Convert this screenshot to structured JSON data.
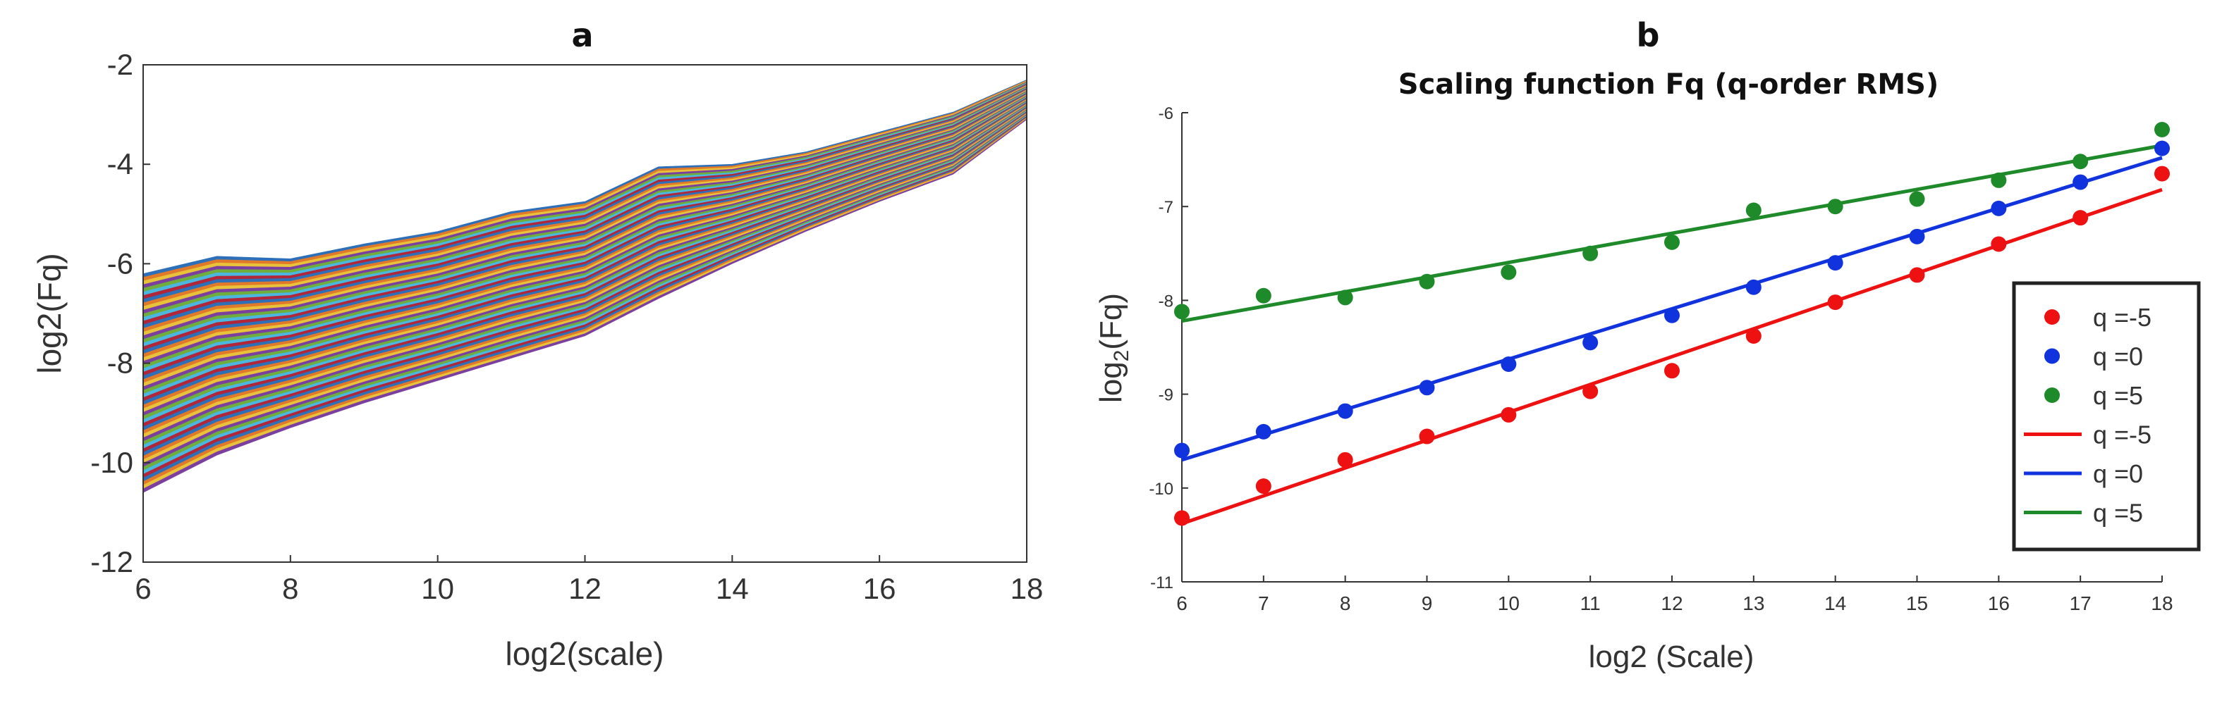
{
  "colors": {
    "red": "#ee1111",
    "blue": "#1133dd",
    "green": "#1f8a2a",
    "band_palette": [
      "#2d6fb8",
      "#e07a2a",
      "#e8c23a",
      "#7b3fa0",
      "#6fae3c",
      "#4bb6e0",
      "#b2263a"
    ]
  },
  "chart_data": [
    {
      "panel_label": "a",
      "type": "area",
      "title": "",
      "xlabel": "log2(scale)",
      "ylabel": "log2(Fq)",
      "xlim": [
        6,
        18
      ],
      "ylim": [
        -12,
        -2
      ],
      "xticks": [
        "6",
        "8",
        "10",
        "12",
        "14",
        "16",
        "18"
      ],
      "yticks": [
        "-2",
        "-4",
        "-6",
        "-8",
        "-10",
        "-12"
      ],
      "grid": false,
      "x": [
        6,
        7,
        8,
        9,
        10,
        11,
        12,
        13,
        14,
        15,
        16,
        17,
        18
      ],
      "upper_envelope": [
        -6.2,
        -5.85,
        -5.9,
        -5.6,
        -5.35,
        -4.95,
        -4.75,
        -4.05,
        -4.0,
        -3.75,
        -3.35,
        -2.95,
        -2.3
      ],
      "lower_envelope": [
        -10.6,
        -9.85,
        -9.3,
        -8.8,
        -8.35,
        -7.9,
        -7.45,
        -6.7,
        -6.0,
        -5.35,
        -4.75,
        -4.2,
        -3.1
      ],
      "band_count": 60
    },
    {
      "panel_label": "b",
      "type": "scatter",
      "title": "Scaling function Fq (q-order RMS)",
      "xlabel": "log2 (Scale)",
      "ylabel_main": "log",
      "ylabel_sub": "2",
      "ylabel_tail": "(Fq)",
      "xlim": [
        6,
        18
      ],
      "ylim": [
        -11,
        -6
      ],
      "xticks": [
        "6",
        "7",
        "8",
        "9",
        "10",
        "11",
        "12",
        "13",
        "14",
        "15",
        "16",
        "17",
        "18"
      ],
      "yticks": [
        "-6",
        "-7",
        "-8",
        "-9",
        "-10",
        "-11"
      ],
      "grid": false,
      "legend_position": "right",
      "x": [
        6,
        7,
        8,
        9,
        10,
        11,
        12,
        13,
        14,
        15,
        16,
        17,
        18
      ],
      "series": [
        {
          "name": "q =-5",
          "kind": "points",
          "color_key": "red",
          "values": [
            -10.32,
            -9.98,
            -9.7,
            -9.45,
            -9.22,
            -8.97,
            -8.75,
            -8.38,
            -8.02,
            -7.73,
            -7.4,
            -7.12,
            -6.65
          ]
        },
        {
          "name": "q =0",
          "kind": "points",
          "color_key": "blue",
          "values": [
            -9.6,
            -9.4,
            -9.18,
            -8.93,
            -8.68,
            -8.45,
            -8.16,
            -7.86,
            -7.6,
            -7.32,
            -7.02,
            -6.74,
            -6.38
          ]
        },
        {
          "name": "q =5",
          "kind": "points",
          "color_key": "green",
          "values": [
            -8.12,
            -7.95,
            -7.97,
            -7.8,
            -7.7,
            -7.5,
            -7.38,
            -7.04,
            -7.0,
            -6.92,
            -6.72,
            -6.52,
            -6.18
          ]
        },
        {
          "name": "q =-5",
          "kind": "fit",
          "color_key": "red",
          "line": [
            [
              6,
              -10.38
            ],
            [
              18,
              -6.82
            ]
          ]
        },
        {
          "name": "q =0",
          "kind": "fit",
          "color_key": "blue",
          "line": [
            [
              6,
              -9.7
            ],
            [
              18,
              -6.48
            ]
          ]
        },
        {
          "name": "q =5",
          "kind": "fit",
          "color_key": "green",
          "line": [
            [
              6,
              -8.22
            ],
            [
              18,
              -6.35
            ]
          ]
        }
      ]
    }
  ]
}
